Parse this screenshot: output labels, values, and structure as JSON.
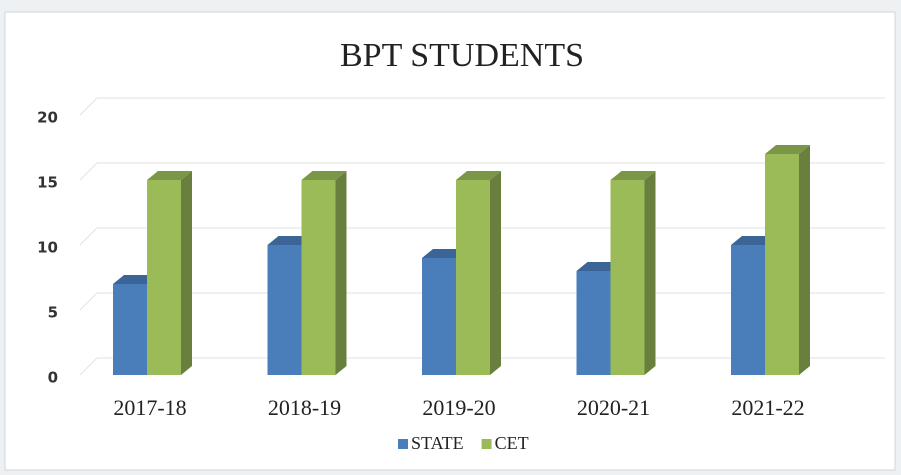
{
  "chart_data": {
    "type": "bar3d",
    "title": "BPT STUDENTS",
    "categories": [
      "2017-18",
      "2018-19",
      "2019-20",
      "2020-21",
      "2021-22"
    ],
    "series": [
      {
        "name": "STATE",
        "color": "#4a7ebb",
        "values": [
          7,
          10,
          9,
          8,
          10
        ]
      },
      {
        "name": "CET",
        "color": "#9bbb59",
        "values": [
          15,
          15,
          15,
          15,
          17
        ]
      }
    ],
    "ylim": [
      0,
      20
    ],
    "yticks": [
      0,
      5,
      10,
      15,
      20
    ],
    "grid": true,
    "legend": "bottom"
  }
}
